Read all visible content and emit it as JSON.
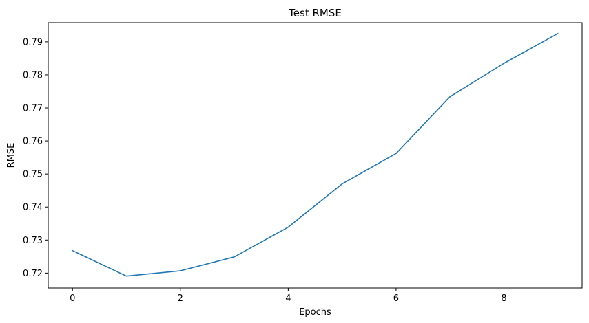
{
  "chart_data": {
    "type": "line",
    "title": "Test RMSE",
    "xlabel": "Epochs",
    "ylabel": "RMSE",
    "xlim": [
      -0.45,
      9.45
    ],
    "ylim": [
      0.7155,
      0.7958
    ],
    "x_ticks": [
      0,
      2,
      4,
      6,
      8
    ],
    "y_ticks": [
      0.72,
      0.73,
      0.74,
      0.75,
      0.76,
      0.77,
      0.78,
      0.79
    ],
    "grid": false,
    "series": [
      {
        "color": "#1f77b4",
        "x": [
          0,
          1,
          2,
          3,
          4,
          5,
          6,
          7,
          8,
          9
        ],
        "values": [
          0.7268,
          0.7191,
          0.7207,
          0.7249,
          0.7339,
          0.747,
          0.7562,
          0.7734,
          0.7835,
          0.7925
        ]
      }
    ]
  }
}
